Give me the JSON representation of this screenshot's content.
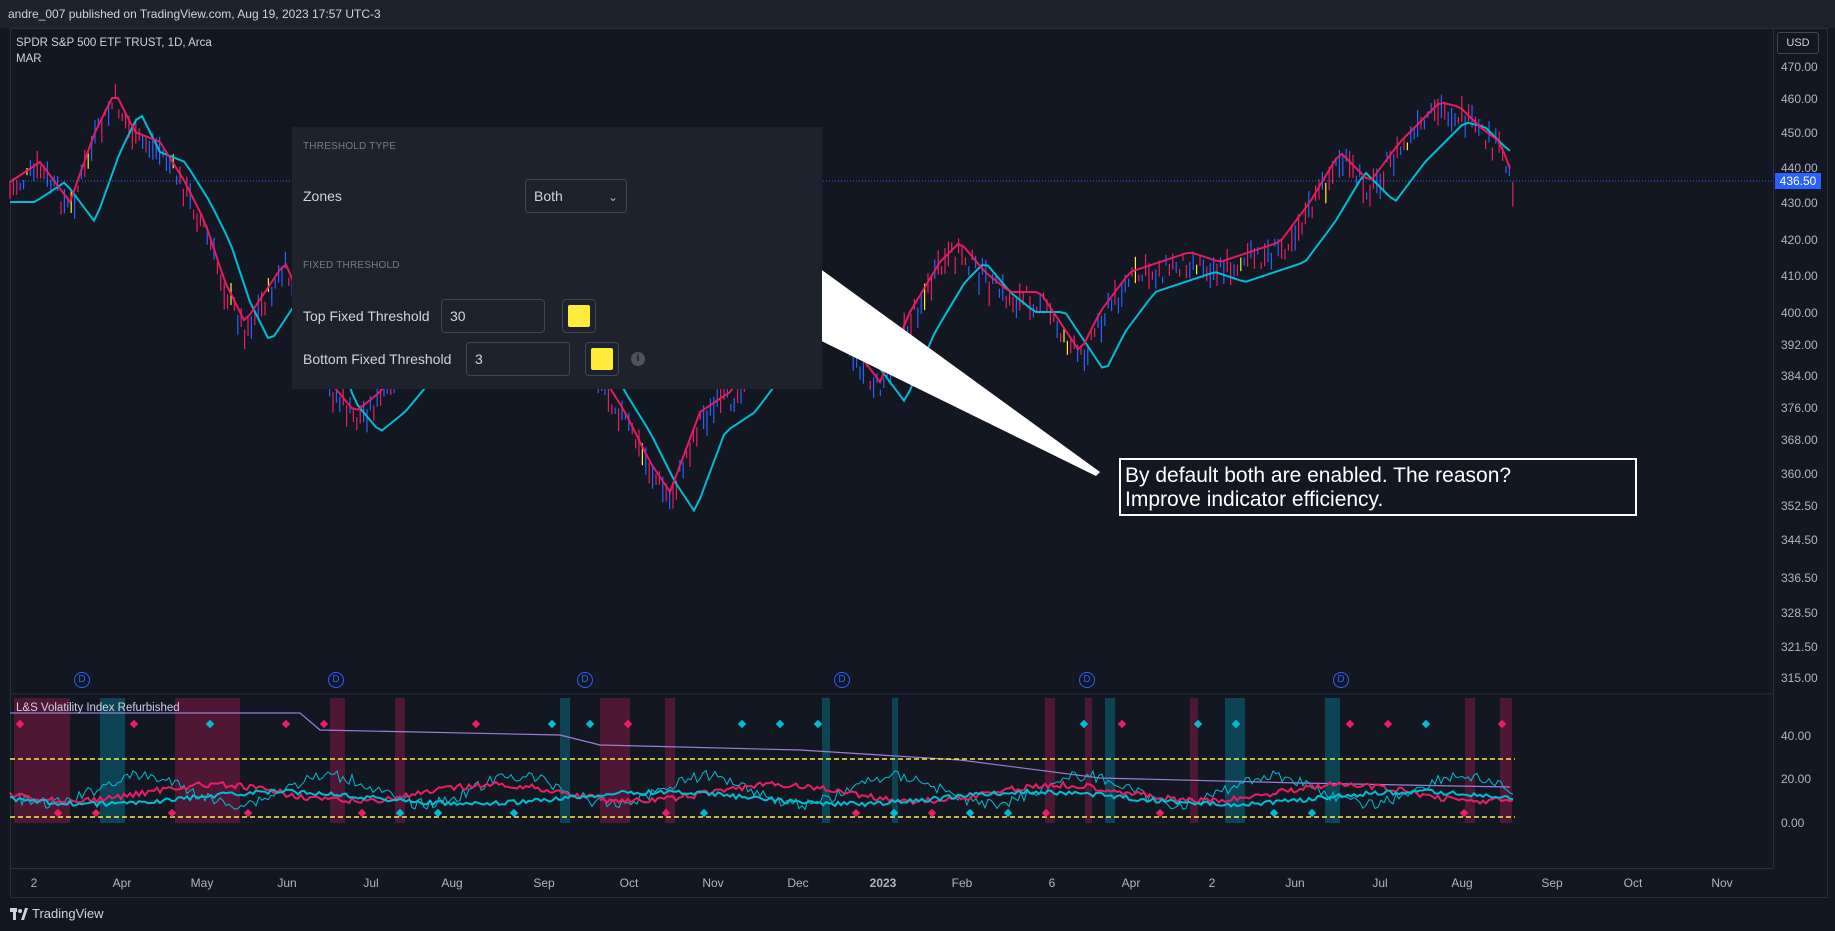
{
  "header": {
    "publisher": "andre_007 published on TradingView.com, Aug 19, 2023 17:57 UTC-3"
  },
  "symbol": {
    "name": "SPDR S&P 500 ETF TRUST, 1D, Arca",
    "study": "MAR"
  },
  "price_axis": {
    "currency": "USD",
    "current_price": "436.50",
    "ticks": [
      "470.00",
      "460.00",
      "450.00",
      "440.00",
      "430.00",
      "420.00",
      "410.00",
      "400.00",
      "392.00",
      "384.00",
      "376.00",
      "368.00",
      "360.00",
      "352.50",
      "344.50",
      "336.50",
      "328.50",
      "321.50",
      "315.00"
    ]
  },
  "time_axis": {
    "labels": [
      "2",
      "Apr",
      "May",
      "Jun",
      "Jul",
      "Aug",
      "Sep",
      "Oct",
      "Nov",
      "Dec",
      "2023",
      "Feb",
      "6",
      "Apr",
      "2",
      "Jun",
      "Jul",
      "Aug",
      "Sep",
      "Oct",
      "Nov"
    ]
  },
  "settings_panel": {
    "section_threshold_type": "THRESHOLD TYPE",
    "zones_label": "Zones",
    "zones_value": "Both",
    "section_fixed_threshold": "FIXED THRESHOLD",
    "top_label": "Top Fixed Threshold",
    "top_value": "30",
    "bottom_label": "Bottom Fixed Threshold",
    "bottom_value": "3",
    "swatch_color": "#ffeb3b"
  },
  "callout": {
    "line1": "By default both are enabled. The reason?",
    "line2": "Improve indicator efficiency."
  },
  "indicator": {
    "title": "L&S Volatility Index Refurbished",
    "axis": [
      "40.00",
      "20.00",
      "0.00"
    ]
  },
  "dividend_marker": "D",
  "footer": {
    "brand": "TradingView"
  },
  "colors": {
    "background": "#131722",
    "up": "#2962ff",
    "down": "#e91e63",
    "ma_fast": "#00bcd4",
    "ma_slow": "#e91e63",
    "threshold": "#ffeb3b"
  }
}
